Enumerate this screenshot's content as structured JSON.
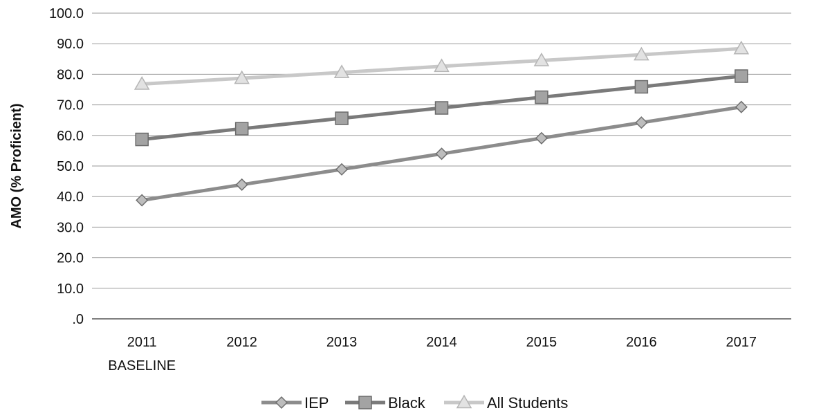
{
  "chart_data": {
    "type": "line",
    "title": "",
    "xlabel": "",
    "ylabel": "AMO (% Proficient)",
    "ylim": [
      0,
      100
    ],
    "yticks": [
      ".0",
      "10.0",
      "20.0",
      "30.0",
      "40.0",
      "50.0",
      "60.0",
      "70.0",
      "80.0",
      "90.0",
      "100.0"
    ],
    "categories": [
      {
        "year": "2011",
        "sub": "BASELINE"
      },
      {
        "year": "2012",
        "sub": ""
      },
      {
        "year": "2013",
        "sub": ""
      },
      {
        "year": "2014",
        "sub": ""
      },
      {
        "year": "2015",
        "sub": ""
      },
      {
        "year": "2016",
        "sub": ""
      },
      {
        "year": "2017",
        "sub": ""
      }
    ],
    "grid": true,
    "legend_position": "bottom",
    "series": [
      {
        "name": "IEP",
        "marker": "diamond",
        "color": "#8c8c8c",
        "values": [
          38.8,
          43.9,
          48.9,
          54.0,
          59.1,
          64.2,
          69.3
        ]
      },
      {
        "name": "Black",
        "marker": "square",
        "color": "#7a7a7a",
        "values": [
          58.7,
          62.2,
          65.6,
          69.0,
          72.5,
          75.9,
          79.4
        ]
      },
      {
        "name": "All Students",
        "marker": "triangle",
        "color": "#c8c8c8",
        "values": [
          76.8,
          78.7,
          80.6,
          82.6,
          84.5,
          86.4,
          88.4
        ]
      }
    ]
  }
}
